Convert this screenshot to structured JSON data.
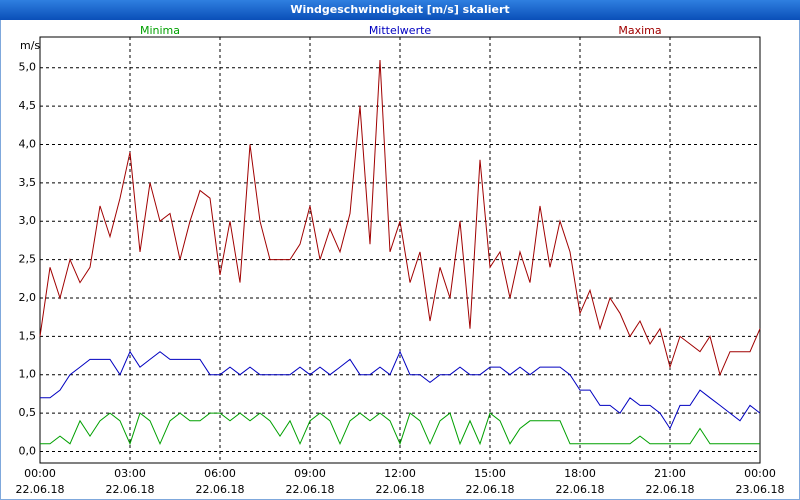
{
  "chart_data": {
    "type": "line",
    "title": "Windgeschwindigkeit [m/s] skaliert",
    "y_unit": "m/s",
    "x": [
      0,
      20,
      40,
      60,
      80,
      100,
      120,
      140,
      160,
      180,
      200,
      220,
      240,
      260,
      280,
      300,
      320,
      340,
      360,
      380,
      400,
      420,
      440,
      460,
      480,
      500,
      520,
      540,
      560,
      580,
      600,
      620,
      640,
      660,
      680,
      700,
      720,
      740,
      760,
      780,
      800,
      820,
      840,
      860,
      880,
      900,
      920,
      940,
      960,
      980,
      1000,
      1020,
      1040,
      1060,
      1080,
      1100,
      1120,
      1140,
      1160,
      1180,
      1200,
      1220,
      1240,
      1260,
      1280,
      1300,
      1320,
      1340,
      1360,
      1380,
      1400,
      1420,
      1440
    ],
    "xlim": [
      0,
      1440
    ],
    "xticks": [
      {
        "value": 0,
        "label": "00:00",
        "date": "22.06.18"
      },
      {
        "value": 180,
        "label": "03:00",
        "date": "22.06.18"
      },
      {
        "value": 360,
        "label": "06:00",
        "date": "22.06.18"
      },
      {
        "value": 540,
        "label": "09:00",
        "date": "22.06.18"
      },
      {
        "value": 720,
        "label": "12:00",
        "date": "22.06.18"
      },
      {
        "value": 900,
        "label": "15:00",
        "date": "22.06.18"
      },
      {
        "value": 1080,
        "label": "18:00",
        "date": "22.06.18"
      },
      {
        "value": 1260,
        "label": "21:00",
        "date": "22.06.18"
      },
      {
        "value": 1440,
        "label": "00:00",
        "date": "23.06.18"
      }
    ],
    "ylim": [
      -0.15,
      5.4
    ],
    "yticks": [
      {
        "value": 0,
        "label": "0,0"
      },
      {
        "value": 0.5,
        "label": "0,5"
      },
      {
        "value": 1,
        "label": "1,0"
      },
      {
        "value": 1.5,
        "label": "1,5"
      },
      {
        "value": 2,
        "label": "2,0"
      },
      {
        "value": 2.5,
        "label": "2,5"
      },
      {
        "value": 3,
        "label": "3,0"
      },
      {
        "value": 3.5,
        "label": "3,5"
      },
      {
        "value": 4,
        "label": "4,0"
      },
      {
        "value": 4.5,
        "label": "4,5"
      },
      {
        "value": 5,
        "label": "5,0"
      }
    ],
    "grid": true,
    "series": [
      {
        "name": "Minima",
        "color": "#00a000",
        "values": [
          0.1,
          0.1,
          0.2,
          0.1,
          0.4,
          0.2,
          0.4,
          0.5,
          0.4,
          0.1,
          0.5,
          0.4,
          0.1,
          0.4,
          0.5,
          0.4,
          0.4,
          0.5,
          0.5,
          0.4,
          0.5,
          0.4,
          0.5,
          0.4,
          0.2,
          0.4,
          0.1,
          0.4,
          0.5,
          0.4,
          0.1,
          0.4,
          0.5,
          0.4,
          0.5,
          0.4,
          0.1,
          0.5,
          0.4,
          0.1,
          0.4,
          0.5,
          0.1,
          0.4,
          0.1,
          0.5,
          0.4,
          0.1,
          0.3,
          0.4,
          0.4,
          0.4,
          0.4,
          0.1,
          0.1,
          0.1,
          0.1,
          0.1,
          0.1,
          0.1,
          0.2,
          0.1,
          0.1,
          0.1,
          0.1,
          0.1,
          0.3,
          0.1,
          0.1,
          0.1,
          0.1,
          0.1,
          0.1
        ]
      },
      {
        "name": "Mittelwerte",
        "color": "#0000c0",
        "values": [
          0.7,
          0.7,
          0.8,
          1.0,
          1.1,
          1.2,
          1.2,
          1.2,
          1.0,
          1.3,
          1.1,
          1.2,
          1.3,
          1.2,
          1.2,
          1.2,
          1.2,
          1.0,
          1.0,
          1.1,
          1.0,
          1.1,
          1.0,
          1.0,
          1.0,
          1.0,
          1.1,
          1.0,
          1.1,
          1.0,
          1.1,
          1.2,
          1.0,
          1.0,
          1.1,
          1.0,
          1.3,
          1.0,
          1.0,
          0.9,
          1.0,
          1.0,
          1.1,
          1.0,
          1.0,
          1.1,
          1.1,
          1.0,
          1.1,
          1.0,
          1.1,
          1.1,
          1.1,
          1.0,
          0.8,
          0.8,
          0.6,
          0.6,
          0.5,
          0.7,
          0.6,
          0.6,
          0.5,
          0.3,
          0.6,
          0.6,
          0.8,
          0.7,
          0.6,
          0.5,
          0.4,
          0.6,
          0.5
        ]
      },
      {
        "name": "Maxima",
        "color": "#a00000",
        "values": [
          1.5,
          2.4,
          2.0,
          2.5,
          2.2,
          2.4,
          3.2,
          2.8,
          3.3,
          3.9,
          2.6,
          3.5,
          3.0,
          3.1,
          2.5,
          3.0,
          3.4,
          3.3,
          2.3,
          3.0,
          2.2,
          4.0,
          3.0,
          2.5,
          2.5,
          2.5,
          2.7,
          3.2,
          2.5,
          2.9,
          2.6,
          3.1,
          4.5,
          2.7,
          5.1,
          2.6,
          3.0,
          2.2,
          2.6,
          1.7,
          2.4,
          2.0,
          3.0,
          1.6,
          3.8,
          2.4,
          2.6,
          2.0,
          2.6,
          2.2,
          3.2,
          2.4,
          3.0,
          2.6,
          1.8,
          2.1,
          1.6,
          2.0,
          1.8,
          1.5,
          1.7,
          1.4,
          1.6,
          1.1,
          1.5,
          1.4,
          1.3,
          1.5,
          1.0,
          1.3,
          1.3,
          1.3,
          1.6
        ]
      }
    ]
  }
}
